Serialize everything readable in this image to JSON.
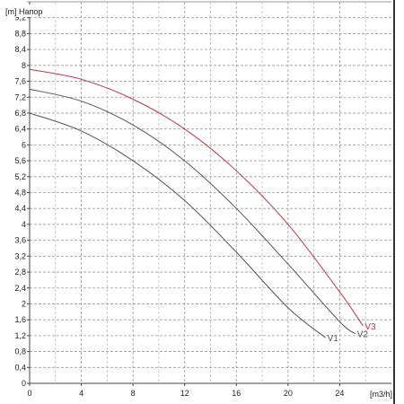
{
  "chart_data": {
    "type": "line",
    "title": "",
    "ylabel_unit": "[m]",
    "ylabel_name": "Напор",
    "xlabel": "[m3/h]",
    "xlim": [
      0,
      28
    ],
    "ylim": [
      0,
      9.6
    ],
    "x_ticks": [
      0,
      4,
      8,
      12,
      16,
      20,
      24
    ],
    "y_ticks": [
      0,
      0.4,
      0.8,
      1.2,
      1.6,
      2,
      2.4,
      2.8,
      3.2,
      3.6,
      4,
      4.4,
      4.8,
      5.2,
      5.6,
      6,
      6.4,
      6.8,
      7.2,
      7.6,
      8,
      8.4,
      8.8,
      9.2
    ],
    "grid": true,
    "series": [
      {
        "name": "V1",
        "color": "#555555",
        "x": [
          0,
          4,
          8,
          12,
          16,
          20,
          22.9
        ],
        "y": [
          6.8,
          6.35,
          5.6,
          4.6,
          3.3,
          1.9,
          1.15
        ]
      },
      {
        "name": "V2",
        "color": "#555555",
        "x": [
          0,
          4,
          8,
          12,
          16,
          20,
          24,
          25.2
        ],
        "y": [
          7.4,
          7.1,
          6.5,
          5.6,
          4.4,
          3.0,
          1.55,
          1.25
        ]
      },
      {
        "name": "V3",
        "color": "#c0394f",
        "x": [
          0,
          4,
          8,
          12,
          16,
          20,
          24,
          25.8
        ],
        "y": [
          7.9,
          7.65,
          7.15,
          6.4,
          5.35,
          4.0,
          2.3,
          1.45
        ]
      }
    ]
  }
}
